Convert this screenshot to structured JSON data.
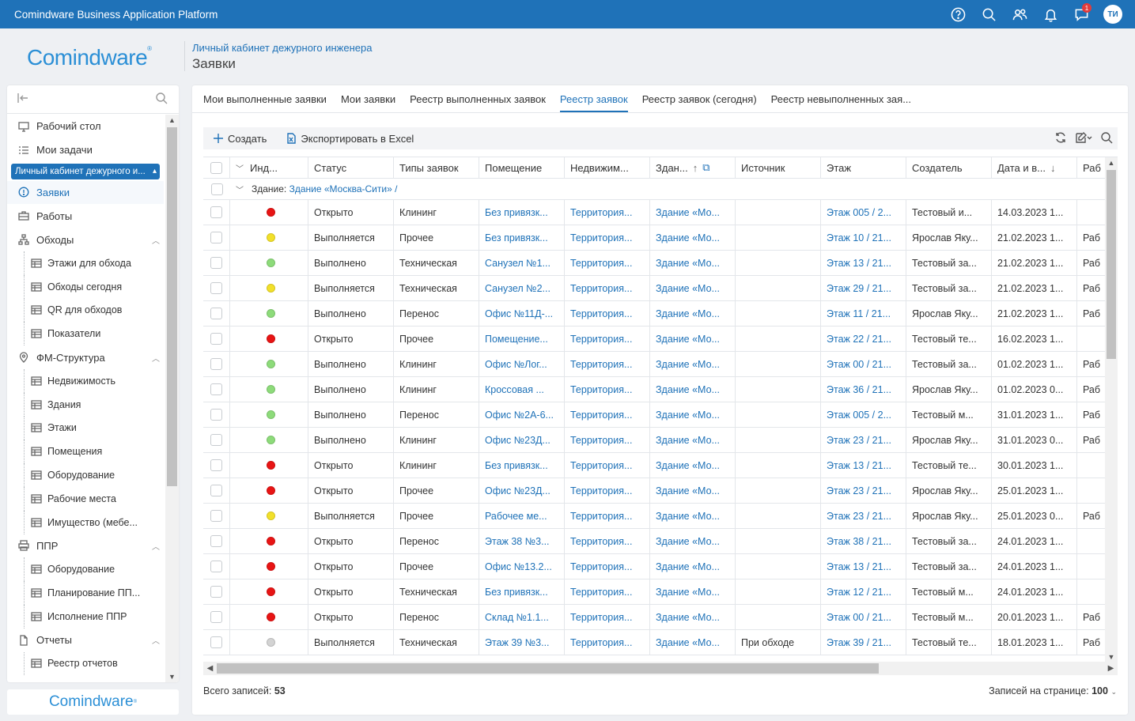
{
  "app": {
    "title": "Comindware Business Application Platform",
    "notif_badge": "1",
    "avatar": "ТИ"
  },
  "header": {
    "logo": "Comindware",
    "breadcrumb": "Личный кабинет дежурного инженера",
    "title": "Заявки"
  },
  "sidebar": {
    "items": [
      {
        "label": "Рабочий стол",
        "icon": "desktop-icon"
      },
      {
        "label": "Мои задачи",
        "icon": "tasks-icon"
      }
    ],
    "group": "Личный кабинет дежурного и...",
    "sub": [
      {
        "label": "Заявки",
        "icon": "alert-circle-icon",
        "active": true
      },
      {
        "label": "Работы",
        "icon": "briefcase-icon"
      },
      {
        "label": "Обходы",
        "icon": "sitemap-icon",
        "expandable": true
      },
      {
        "label": "Этажи для обхода",
        "icon": "table-icon",
        "child": true
      },
      {
        "label": "Обходы сегодня",
        "icon": "table-icon",
        "child": true
      },
      {
        "label": "QR для обходов",
        "icon": "table-icon",
        "child": true
      },
      {
        "label": "Показатели",
        "icon": "table-icon",
        "child": true
      },
      {
        "label": "ФМ-Структура",
        "icon": "map-pin-icon",
        "expandable": true
      },
      {
        "label": "Недвижимость",
        "icon": "table-icon",
        "child": true
      },
      {
        "label": "Здания",
        "icon": "table-icon",
        "child": true
      },
      {
        "label": "Этажи",
        "icon": "table-icon",
        "child": true
      },
      {
        "label": "Помещения",
        "icon": "table-icon",
        "child": true
      },
      {
        "label": "Оборудование",
        "icon": "table-icon",
        "child": true
      },
      {
        "label": "Рабочие места",
        "icon": "table-icon",
        "child": true
      },
      {
        "label": "Имущество (мебе...",
        "icon": "table-icon",
        "child": true
      },
      {
        "label": "ППР",
        "icon": "printer-icon",
        "expandable": true
      },
      {
        "label": "Оборудование",
        "icon": "table-icon",
        "child": true
      },
      {
        "label": "Планирование ПП...",
        "icon": "table-icon",
        "child": true
      },
      {
        "label": "Исполнение ППР",
        "icon": "table-icon",
        "child": true
      },
      {
        "label": "Отчеты",
        "icon": "document-icon",
        "expandable": true
      },
      {
        "label": "Реестр отчетов",
        "icon": "table-icon",
        "child": true
      }
    ],
    "footer_logo": "Comindware"
  },
  "tabs": [
    "Мои выполненные заявки",
    "Мои заявки",
    "Реестр выполненных заявок",
    "Реестр заявок",
    "Реестр заявок (сегодня)",
    "Реестр невыполненных зая..."
  ],
  "active_tab": 3,
  "toolbar": {
    "create": "Создать",
    "export": "Экспортировать в Excel"
  },
  "grid": {
    "columns": [
      "Инд...",
      "Статус",
      "Типы заявок",
      "Помещение",
      "Недвижим...",
      "Здан...",
      "Источник",
      "Этаж",
      "Создатель",
      "Дата и в...",
      "Раб"
    ],
    "group_label": "Здание:",
    "group_value": "Здание «Москва-Сити» /",
    "status_colors": {
      "red": "#e81414",
      "yellow": "#f2e02a",
      "green": "#8ddb7a",
      "gray": "#d3d3d3"
    },
    "rows": [
      {
        "ind": "red",
        "status": "Открыто",
        "type": "Клининг",
        "room": "Без привязк...",
        "realty": "Территория...",
        "building": "Здание «Мо...",
        "source": "",
        "floor": "Этаж 005 / 2...",
        "creator": "Тестовый и...",
        "date": "14.03.2023 1...",
        "work": ""
      },
      {
        "ind": "yellow",
        "status": "Выполняется",
        "type": "Прочее",
        "room": "Без привязк...",
        "realty": "Территория...",
        "building": "Здание «Мо...",
        "source": "",
        "floor": "Этаж 10 / 21...",
        "creator": "Ярослав Яку...",
        "date": "21.02.2023 1...",
        "work": "Раб"
      },
      {
        "ind": "green",
        "status": "Выполнено",
        "type": "Техническая",
        "room": "Санузел №1...",
        "realty": "Территория...",
        "building": "Здание «Мо...",
        "source": "",
        "floor": "Этаж 13 / 21...",
        "creator": "Тестовый за...",
        "date": "21.02.2023 1...",
        "work": "Раб"
      },
      {
        "ind": "yellow",
        "status": "Выполняется",
        "type": "Техническая",
        "room": "Санузел №2...",
        "realty": "Территория...",
        "building": "Здание «Мо...",
        "source": "",
        "floor": "Этаж 29 / 21...",
        "creator": "Тестовый за...",
        "date": "21.02.2023 1...",
        "work": "Раб"
      },
      {
        "ind": "green",
        "status": "Выполнено",
        "type": "Перенос",
        "room": "Офис №11Д-...",
        "realty": "Территория...",
        "building": "Здание «Мо...",
        "source": "",
        "floor": "Этаж 11 / 21...",
        "creator": "Ярослав Яку...",
        "date": "21.02.2023 1...",
        "work": "Раб"
      },
      {
        "ind": "red",
        "status": "Открыто",
        "type": "Прочее",
        "room": "Помещение...",
        "realty": "Территория...",
        "building": "Здание «Мо...",
        "source": "",
        "floor": "Этаж 22 / 21...",
        "creator": "Тестовый те...",
        "date": "16.02.2023 1...",
        "work": ""
      },
      {
        "ind": "green",
        "status": "Выполнено",
        "type": "Клининг",
        "room": "Офис №Лог...",
        "realty": "Территория...",
        "building": "Здание «Мо...",
        "source": "",
        "floor": "Этаж 00 / 21...",
        "creator": "Тестовый за...",
        "date": "01.02.2023 1...",
        "work": "Раб"
      },
      {
        "ind": "green",
        "status": "Выполнено",
        "type": "Клининг",
        "room": "Кроссовая ...",
        "realty": "Территория...",
        "building": "Здание «Мо...",
        "source": "",
        "floor": "Этаж 36 / 21...",
        "creator": "Ярослав Яку...",
        "date": "01.02.2023 0...",
        "work": "Раб"
      },
      {
        "ind": "green",
        "status": "Выполнено",
        "type": "Перенос",
        "room": "Офис №2А-6...",
        "realty": "Территория...",
        "building": "Здание «Мо...",
        "source": "",
        "floor": "Этаж 005 / 2...",
        "creator": "Тестовый м...",
        "date": "31.01.2023 1...",
        "work": "Раб"
      },
      {
        "ind": "green",
        "status": "Выполнено",
        "type": "Клининг",
        "room": "Офис №23Д...",
        "realty": "Территория...",
        "building": "Здание «Мо...",
        "source": "",
        "floor": "Этаж 23 / 21...",
        "creator": "Ярослав Яку...",
        "date": "31.01.2023 0...",
        "work": "Раб"
      },
      {
        "ind": "red",
        "status": "Открыто",
        "type": "Клининг",
        "room": "Без привязк...",
        "realty": "Территория...",
        "building": "Здание «Мо...",
        "source": "",
        "floor": "Этаж 13 / 21...",
        "creator": "Тестовый те...",
        "date": "30.01.2023 1...",
        "work": ""
      },
      {
        "ind": "red",
        "status": "Открыто",
        "type": "Прочее",
        "room": "Офис №23Д...",
        "realty": "Территория...",
        "building": "Здание «Мо...",
        "source": "",
        "floor": "Этаж 23 / 21...",
        "creator": "Ярослав Яку...",
        "date": "25.01.2023 1...",
        "work": ""
      },
      {
        "ind": "yellow",
        "status": "Выполняется",
        "type": "Прочее",
        "room": "Рабочее ме...",
        "realty": "Территория...",
        "building": "Здание «Мо...",
        "source": "",
        "floor": "Этаж 23 / 21...",
        "creator": "Ярослав Яку...",
        "date": "25.01.2023 0...",
        "work": "Раб"
      },
      {
        "ind": "red",
        "status": "Открыто",
        "type": "Перенос",
        "room": "Этаж 38 №3...",
        "realty": "Территория...",
        "building": "Здание «Мо...",
        "source": "",
        "floor": "Этаж 38 / 21...",
        "creator": "Тестовый за...",
        "date": "24.01.2023 1...",
        "work": ""
      },
      {
        "ind": "red",
        "status": "Открыто",
        "type": "Прочее",
        "room": "Офис №13.2...",
        "realty": "Территория...",
        "building": "Здание «Мо...",
        "source": "",
        "floor": "Этаж 13 / 21...",
        "creator": "Тестовый за...",
        "date": "24.01.2023 1...",
        "work": ""
      },
      {
        "ind": "red",
        "status": "Открыто",
        "type": "Техническая",
        "room": "Без привязк...",
        "realty": "Территория...",
        "building": "Здание «Мо...",
        "source": "",
        "floor": "Этаж 12 / 21...",
        "creator": "Тестовый м...",
        "date": "24.01.2023 1...",
        "work": ""
      },
      {
        "ind": "red",
        "status": "Открыто",
        "type": "Перенос",
        "room": "Склад №1.1...",
        "realty": "Территория...",
        "building": "Здание «Мо...",
        "source": "",
        "floor": "Этаж 00 / 21...",
        "creator": "Тестовый м...",
        "date": "20.01.2023 1...",
        "work": "Раб"
      },
      {
        "ind": "gray",
        "status": "Выполняется",
        "type": "Техническая",
        "room": "Этаж 39 №3...",
        "realty": "Территория...",
        "building": "Здание «Мо...",
        "source": "При обходе",
        "floor": "Этаж 39 / 21...",
        "creator": "Тестовый те...",
        "date": "18.01.2023 1...",
        "work": "Раб"
      }
    ]
  },
  "footer": {
    "total_label": "Всего записей:",
    "total": "53",
    "per_page_label": "Записей на странице:",
    "per_page": "100"
  }
}
